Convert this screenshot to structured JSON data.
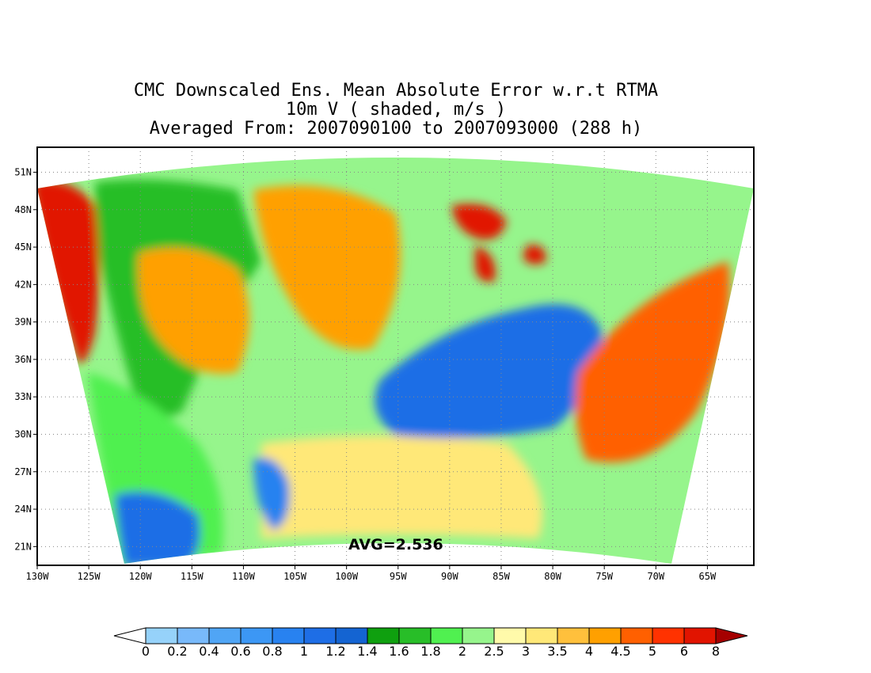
{
  "title": {
    "line1": "CMC Downscaled Ens. Mean Absolute Error w.r.t RTMA",
    "line2": "10m V ( shaded, m/s )",
    "line3": "Averaged From: 2007090100 to 2007093000 (288 h)"
  },
  "map": {
    "lat_labels": [
      "51N",
      "48N",
      "45N",
      "42N",
      "39N",
      "36N",
      "33N",
      "30N",
      "27N",
      "24N",
      "21N"
    ],
    "lon_labels": [
      "130W",
      "125W",
      "120W",
      "115W",
      "110W",
      "105W",
      "100W",
      "95W",
      "90W",
      "85W",
      "80W",
      "75W",
      "70W",
      "65W"
    ],
    "lat_range": [
      19.5,
      53
    ],
    "lon_range": [
      -130,
      -60.5
    ],
    "avg_label": "AVG=2.536"
  },
  "colorbar": {
    "labels": [
      "0",
      "0.2",
      "0.4",
      "0.6",
      "0.8",
      "1",
      "1.2",
      "1.4",
      "1.6",
      "1.8",
      "2",
      "2.5",
      "3",
      "3.5",
      "4",
      "4.5",
      "5",
      "6",
      "8"
    ],
    "colors": [
      "#96d2fa",
      "#78b9fa",
      "#50a5f5",
      "#3c97f5",
      "#2882f0",
      "#1e6ee6",
      "#1464d2",
      "#0fa00f",
      "#28be28",
      "#50f050",
      "#96f58c",
      "#fffaaa",
      "#ffe878",
      "#ffc03c",
      "#ffa000",
      "#ff6000",
      "#ff3200",
      "#e11400",
      "#c00000"
    ],
    "under_color": "#ffffff",
    "over_color": "#a50000"
  },
  "regions": [
    {
      "id": "pacific-nw-coast",
      "color": "#e11400"
    },
    {
      "id": "west-orange",
      "color": "#ffa000"
    },
    {
      "id": "plains-orange",
      "color": "#ffa000"
    },
    {
      "id": "great-lakes-red",
      "color": "#e11400"
    },
    {
      "id": "southeast-blue",
      "color": "#1e6ee6"
    },
    {
      "id": "atlantic-orange",
      "color": "#ff6000"
    },
    {
      "id": "gulf-yellow",
      "color": "#ffe878"
    },
    {
      "id": "pacific-sw-green",
      "color": "#50f050"
    },
    {
      "id": "pacific-sw-blue",
      "color": "#1e6ee6"
    },
    {
      "id": "mexico-blue",
      "color": "#2882f0"
    },
    {
      "id": "rockies-green",
      "color": "#28be28"
    }
  ]
}
